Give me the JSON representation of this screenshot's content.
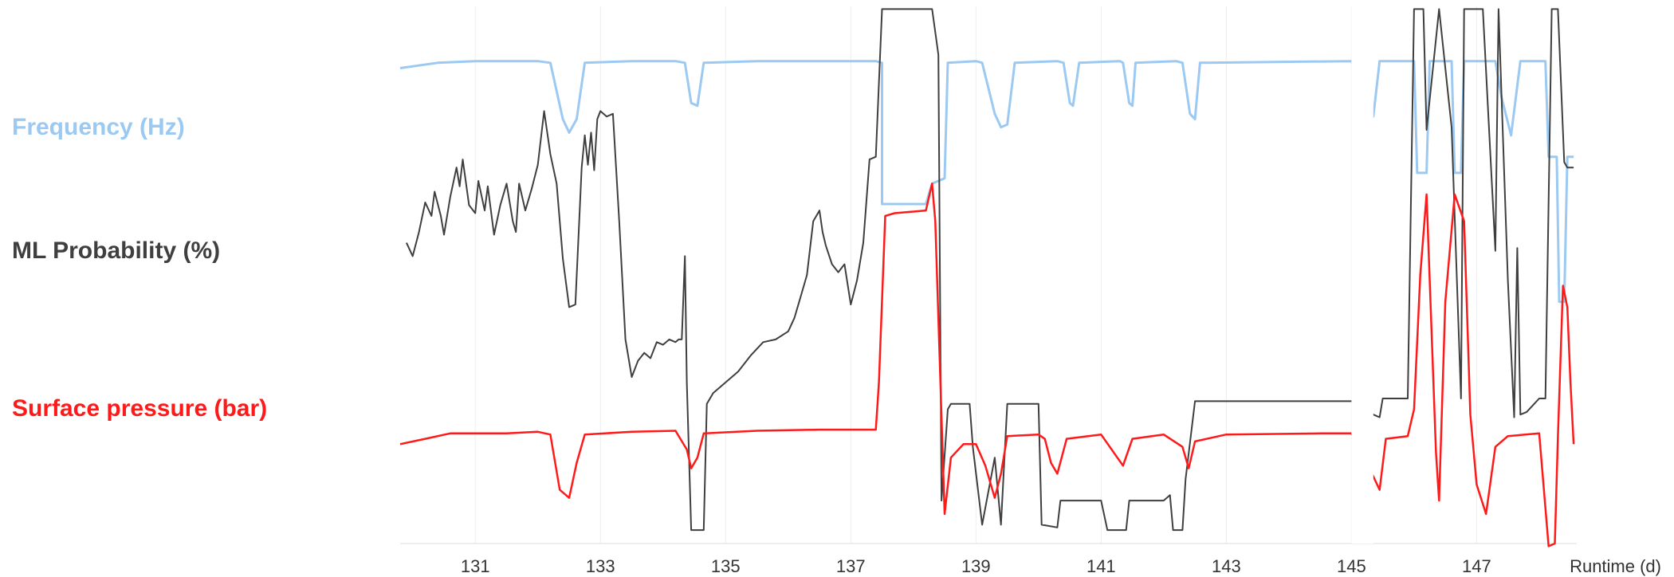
{
  "chart_data": {
    "type": "line",
    "xlabel": "Runtime (d)",
    "xlim": [
      129.8,
      148.6
    ],
    "xticks": [
      131,
      133,
      135,
      137,
      139,
      141,
      143,
      145,
      147
    ],
    "gaps": [
      [
        145.0,
        145.35
      ]
    ],
    "ylim": [
      0,
      100
    ],
    "series": [
      {
        "name": "Frequency (Hz)",
        "color": "#9cc9f2",
        "points": [
          [
            129.8,
            88.5
          ],
          [
            130.4,
            89.5
          ],
          [
            131.0,
            89.8
          ],
          [
            132.0,
            89.8
          ],
          [
            132.2,
            89.5
          ],
          [
            132.4,
            79.0
          ],
          [
            132.5,
            76.5
          ],
          [
            132.62,
            79.0
          ],
          [
            132.75,
            89.5
          ],
          [
            133.5,
            89.8
          ],
          [
            134.2,
            89.8
          ],
          [
            134.35,
            89.5
          ],
          [
            134.45,
            82.0
          ],
          [
            134.55,
            81.5
          ],
          [
            134.65,
            89.5
          ],
          [
            135.5,
            89.8
          ],
          [
            137.4,
            89.8
          ],
          [
            137.5,
            89.5
          ],
          [
            137.5,
            63.2
          ],
          [
            138.2,
            63.2
          ],
          [
            138.3,
            67.0
          ],
          [
            138.5,
            68.0
          ],
          [
            138.55,
            89.5
          ],
          [
            139.0,
            89.8
          ],
          [
            139.1,
            89.5
          ],
          [
            139.3,
            80.0
          ],
          [
            139.4,
            77.5
          ],
          [
            139.5,
            78.0
          ],
          [
            139.62,
            89.5
          ],
          [
            140.3,
            89.8
          ],
          [
            140.4,
            89.5
          ],
          [
            140.5,
            82.0
          ],
          [
            140.55,
            81.5
          ],
          [
            140.65,
            89.5
          ],
          [
            141.3,
            89.8
          ],
          [
            141.35,
            89.5
          ],
          [
            141.45,
            82.0
          ],
          [
            141.5,
            81.5
          ],
          [
            141.55,
            89.5
          ],
          [
            142.2,
            89.8
          ],
          [
            142.3,
            89.5
          ],
          [
            142.42,
            80.0
          ],
          [
            142.5,
            79.0
          ],
          [
            142.58,
            89.5
          ],
          [
            145.0,
            89.8
          ],
          [
            145.35,
            79.5
          ],
          [
            145.45,
            89.8
          ],
          [
            146.0,
            89.8
          ],
          [
            146.05,
            69.0
          ],
          [
            146.2,
            69.0
          ],
          [
            146.25,
            89.8
          ],
          [
            146.6,
            89.8
          ],
          [
            146.65,
            69.0
          ],
          [
            146.75,
            69.0
          ],
          [
            146.8,
            89.8
          ],
          [
            147.3,
            89.8
          ],
          [
            147.4,
            83.0
          ],
          [
            147.55,
            76.0
          ],
          [
            147.7,
            89.8
          ],
          [
            148.1,
            89.8
          ],
          [
            148.15,
            72.0
          ],
          [
            148.28,
            72.0
          ],
          [
            148.32,
            45.0
          ],
          [
            148.4,
            45.0
          ],
          [
            148.45,
            72.0
          ],
          [
            148.55,
            72.0
          ]
        ]
      },
      {
        "name": "ML Probability (%)",
        "color": "#3f3f3f",
        "points": [
          [
            129.9,
            56.0
          ],
          [
            130.0,
            53.5
          ],
          [
            130.1,
            58.0
          ],
          [
            130.2,
            63.5
          ],
          [
            130.3,
            61.0
          ],
          [
            130.35,
            65.5
          ],
          [
            130.45,
            61.0
          ],
          [
            130.5,
            57.5
          ],
          [
            130.6,
            64.5
          ],
          [
            130.7,
            70.0
          ],
          [
            130.75,
            66.5
          ],
          [
            130.8,
            71.5
          ],
          [
            130.9,
            63.0
          ],
          [
            131.0,
            61.5
          ],
          [
            131.05,
            67.5
          ],
          [
            131.15,
            62.0
          ],
          [
            131.2,
            66.5
          ],
          [
            131.3,
            57.5
          ],
          [
            131.4,
            63.0
          ],
          [
            131.5,
            67.0
          ],
          [
            131.6,
            60.0
          ],
          [
            131.65,
            58.0
          ],
          [
            131.7,
            67.0
          ],
          [
            131.8,
            62.0
          ],
          [
            131.9,
            66.0
          ],
          [
            132.0,
            70.5
          ],
          [
            132.1,
            80.5
          ],
          [
            132.2,
            72.5
          ],
          [
            132.3,
            67.0
          ],
          [
            132.4,
            53.0
          ],
          [
            132.5,
            44.0
          ],
          [
            132.6,
            44.5
          ],
          [
            132.7,
            70.0
          ],
          [
            132.75,
            76.0
          ],
          [
            132.8,
            70.5
          ],
          [
            132.85,
            76.5
          ],
          [
            132.9,
            69.5
          ],
          [
            132.95,
            79.0
          ],
          [
            133.0,
            80.5
          ],
          [
            133.1,
            79.5
          ],
          [
            133.2,
            80.0
          ],
          [
            133.3,
            60.0
          ],
          [
            133.4,
            38.0
          ],
          [
            133.5,
            31.0
          ],
          [
            133.6,
            34.0
          ],
          [
            133.7,
            35.5
          ],
          [
            133.8,
            34.5
          ],
          [
            133.9,
            37.5
          ],
          [
            134.0,
            37.0
          ],
          [
            134.1,
            38.0
          ],
          [
            134.2,
            37.5
          ],
          [
            134.25,
            38.0
          ],
          [
            134.3,
            38.0
          ],
          [
            134.35,
            53.5
          ],
          [
            134.38,
            30.0
          ],
          [
            134.45,
            2.5
          ],
          [
            134.55,
            2.5
          ],
          [
            134.65,
            2.5
          ],
          [
            134.7,
            26.0
          ],
          [
            134.8,
            28.0
          ],
          [
            135.0,
            30.0
          ],
          [
            135.2,
            32.0
          ],
          [
            135.4,
            35.0
          ],
          [
            135.6,
            37.5
          ],
          [
            135.8,
            38.0
          ],
          [
            136.0,
            39.5
          ],
          [
            136.1,
            42.0
          ],
          [
            136.2,
            46.0
          ],
          [
            136.3,
            50.0
          ],
          [
            136.4,
            60.0
          ],
          [
            136.5,
            62.0
          ],
          [
            136.55,
            58.0
          ],
          [
            136.6,
            55.5
          ],
          [
            136.7,
            52.0
          ],
          [
            136.8,
            50.5
          ],
          [
            136.9,
            52.0
          ],
          [
            137.0,
            44.5
          ],
          [
            137.1,
            49.0
          ],
          [
            137.2,
            56.0
          ],
          [
            137.3,
            71.5
          ],
          [
            137.4,
            72.0
          ],
          [
            137.5,
            99.5
          ],
          [
            138.3,
            99.5
          ],
          [
            138.4,
            91.0
          ],
          [
            138.45,
            8.0
          ],
          [
            138.55,
            25.0
          ],
          [
            138.6,
            26.0
          ],
          [
            138.9,
            26.0
          ],
          [
            138.95,
            18.0
          ],
          [
            139.1,
            3.5
          ],
          [
            139.3,
            16.0
          ],
          [
            139.4,
            3.5
          ],
          [
            139.5,
            26.0
          ],
          [
            140.0,
            26.0
          ],
          [
            140.05,
            3.5
          ],
          [
            140.3,
            3.0
          ],
          [
            140.35,
            8.0
          ],
          [
            141.0,
            8.0
          ],
          [
            141.1,
            2.5
          ],
          [
            141.4,
            2.5
          ],
          [
            141.45,
            8.0
          ],
          [
            142.0,
            8.0
          ],
          [
            142.1,
            9.0
          ],
          [
            142.15,
            2.5
          ],
          [
            142.3,
            2.5
          ],
          [
            142.35,
            12.0
          ],
          [
            142.5,
            26.5
          ],
          [
            145.0,
            26.5
          ],
          [
            145.35,
            24.0
          ],
          [
            145.45,
            23.5
          ],
          [
            145.5,
            27.0
          ],
          [
            145.9,
            27.0
          ],
          [
            146.0,
            99.5
          ],
          [
            146.15,
            99.5
          ],
          [
            146.2,
            77.0
          ],
          [
            146.4,
            99.5
          ],
          [
            146.6,
            77.5
          ],
          [
            146.75,
            27.0
          ],
          [
            146.8,
            99.5
          ],
          [
            147.1,
            99.5
          ],
          [
            147.3,
            54.5
          ],
          [
            147.35,
            99.5
          ],
          [
            147.5,
            49.0
          ],
          [
            147.6,
            23.5
          ],
          [
            147.65,
            55.0
          ],
          [
            147.7,
            24.0
          ],
          [
            147.8,
            24.5
          ],
          [
            148.0,
            27.0
          ],
          [
            148.1,
            27.0
          ],
          [
            148.2,
            99.5
          ],
          [
            148.3,
            99.5
          ],
          [
            148.4,
            71.0
          ],
          [
            148.45,
            70.0
          ],
          [
            148.55,
            70.0
          ]
        ]
      },
      {
        "name": "Surface pressure (bar)",
        "color": "#ff1a1a",
        "points": [
          [
            129.8,
            18.5
          ],
          [
            130.2,
            19.5
          ],
          [
            130.6,
            20.5
          ],
          [
            131.0,
            20.5
          ],
          [
            131.5,
            20.5
          ],
          [
            132.0,
            20.8
          ],
          [
            132.2,
            20.3
          ],
          [
            132.35,
            10.0
          ],
          [
            132.5,
            8.5
          ],
          [
            132.62,
            15.0
          ],
          [
            132.75,
            20.3
          ],
          [
            133.5,
            20.8
          ],
          [
            134.2,
            21.0
          ],
          [
            134.38,
            17.5
          ],
          [
            134.45,
            14.0
          ],
          [
            134.55,
            16.0
          ],
          [
            134.65,
            20.5
          ],
          [
            135.5,
            21.0
          ],
          [
            136.5,
            21.2
          ],
          [
            137.4,
            21.2
          ],
          [
            137.45,
            30.0
          ],
          [
            137.55,
            61.0
          ],
          [
            137.7,
            61.5
          ],
          [
            138.2,
            62.0
          ],
          [
            138.3,
            67.0
          ],
          [
            138.35,
            60.0
          ],
          [
            138.5,
            5.5
          ],
          [
            138.6,
            16.0
          ],
          [
            138.8,
            18.5
          ],
          [
            139.0,
            18.5
          ],
          [
            139.15,
            14.5
          ],
          [
            139.3,
            8.5
          ],
          [
            139.4,
            13.0
          ],
          [
            139.5,
            20.0
          ],
          [
            140.0,
            20.3
          ],
          [
            140.1,
            19.5
          ],
          [
            140.2,
            15.0
          ],
          [
            140.3,
            13.0
          ],
          [
            140.45,
            19.5
          ],
          [
            141.0,
            20.3
          ],
          [
            141.35,
            14.5
          ],
          [
            141.5,
            19.5
          ],
          [
            142.0,
            20.3
          ],
          [
            142.3,
            18.0
          ],
          [
            142.4,
            14.0
          ],
          [
            142.5,
            19.0
          ],
          [
            143.0,
            20.3
          ],
          [
            144.5,
            20.5
          ],
          [
            145.0,
            20.5
          ],
          [
            145.35,
            12.5
          ],
          [
            145.45,
            10.0
          ],
          [
            145.55,
            19.5
          ],
          [
            145.9,
            20.0
          ],
          [
            146.0,
            25.0
          ],
          [
            146.1,
            50.0
          ],
          [
            146.2,
            65.0
          ],
          [
            146.35,
            17.0
          ],
          [
            146.4,
            8.0
          ],
          [
            146.5,
            45.0
          ],
          [
            146.65,
            65.0
          ],
          [
            146.8,
            60.0
          ],
          [
            146.9,
            24.0
          ],
          [
            147.0,
            11.0
          ],
          [
            147.15,
            5.5
          ],
          [
            147.3,
            18.0
          ],
          [
            147.5,
            20.0
          ],
          [
            148.0,
            20.5
          ],
          [
            148.15,
            -0.5
          ],
          [
            148.25,
            0.0
          ],
          [
            148.3,
            20.0
          ],
          [
            148.38,
            48.0
          ],
          [
            148.45,
            44.0
          ],
          [
            148.5,
            30.0
          ],
          [
            148.55,
            18.5
          ]
        ]
      }
    ]
  }
}
